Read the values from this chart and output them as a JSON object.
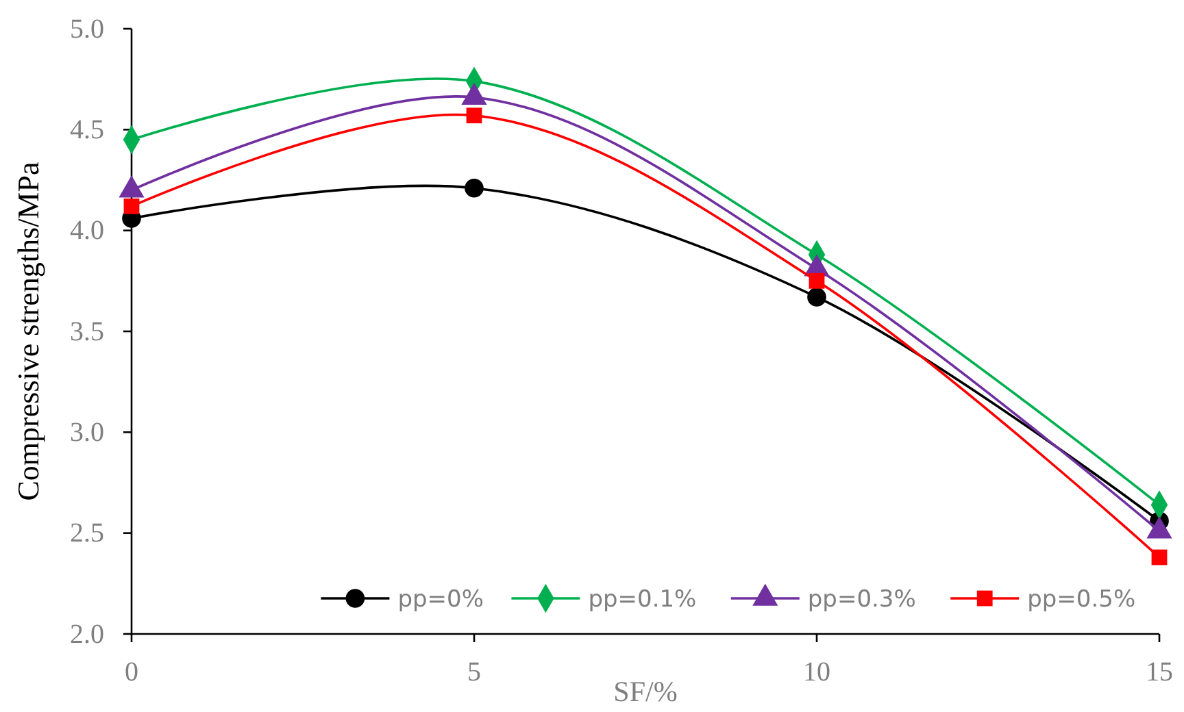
{
  "chart_data": {
    "type": "line",
    "xlabel": "SF/%",
    "ylabel": "Compressive strengths/MPa",
    "x": [
      0,
      5,
      10,
      15
    ],
    "xlim": [
      0,
      15
    ],
    "xticks": [
      0,
      5,
      10,
      15
    ],
    "ylim": [
      2.0,
      5.0
    ],
    "yticks": [
      {
        "value": 2,
        "label": "2.0"
      },
      {
        "value": 2.5,
        "label": "2.5"
      },
      {
        "value": 3,
        "label": "3.0"
      },
      {
        "value": 3.5,
        "label": "3.5"
      },
      {
        "value": 4,
        "label": "4.0"
      },
      {
        "value": 4.5,
        "label": "4.5"
      },
      {
        "value": 5,
        "label": "5.0"
      }
    ],
    "grid": false,
    "legend": "bottom",
    "line_style": "solid",
    "series": [
      {
        "name": "pp=0%",
        "color": "#000000",
        "marker": "circle",
        "values": [
          4.06,
          4.21,
          3.67,
          2.56
        ]
      },
      {
        "name": "pp=0.1%",
        "color": "#00b050",
        "marker": "diamond",
        "values": [
          4.45,
          4.74,
          3.88,
          2.64
        ]
      },
      {
        "name": "pp=0.3%",
        "color": "#7030a0",
        "marker": "triangle",
        "values": [
          4.2,
          4.66,
          3.81,
          2.51
        ]
      },
      {
        "name": "pp=0.5%",
        "color": "#ff0000",
        "marker": "square",
        "values": [
          4.12,
          4.57,
          3.75,
          2.38
        ]
      }
    ]
  }
}
